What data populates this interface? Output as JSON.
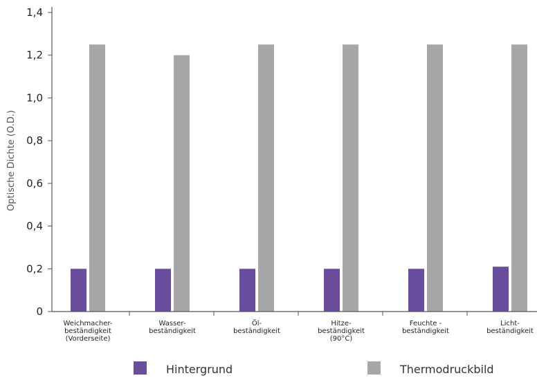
{
  "chart_data": {
    "type": "bar",
    "title": "",
    "xlabel": "",
    "ylabel": "Optische Dichte (O.D.)",
    "ylim": [
      0,
      1.4
    ],
    "yticks": [
      {
        "value": 0,
        "label": "0"
      },
      {
        "value": 0.2,
        "label": "0,2"
      },
      {
        "value": 0.4,
        "label": "0,4"
      },
      {
        "value": 0.6,
        "label": "0,6"
      },
      {
        "value": 0.8,
        "label": "0,8"
      },
      {
        "value": 1.0,
        "label": "1,0"
      },
      {
        "value": 1.2,
        "label": "1,2"
      },
      {
        "value": 1.4,
        "label": "1,4"
      }
    ],
    "categories": [
      [
        "Weichmacher-",
        "beständigkeit",
        "(Vorderseite)"
      ],
      [
        "Wasser-",
        "beständigkeit"
      ],
      [
        "Öl-",
        "beständigkeit"
      ],
      [
        "Hitze-",
        "beständigkeit",
        "(90°C)"
      ],
      [
        "Feuchte -",
        "beständigkeit"
      ],
      [
        "Licht-",
        "beständigkeit"
      ]
    ],
    "series": [
      {
        "name": "Hintergrund",
        "color": "#6a4c9c",
        "values": [
          0.2,
          0.2,
          0.2,
          0.2,
          0.2,
          0.21
        ]
      },
      {
        "name": "Thermodruckbild",
        "color": "#a7a7aa",
        "values": [
          1.25,
          1.2,
          1.25,
          1.25,
          1.25,
          1.25
        ]
      }
    ],
    "grid": false,
    "legend": "bottom"
  }
}
